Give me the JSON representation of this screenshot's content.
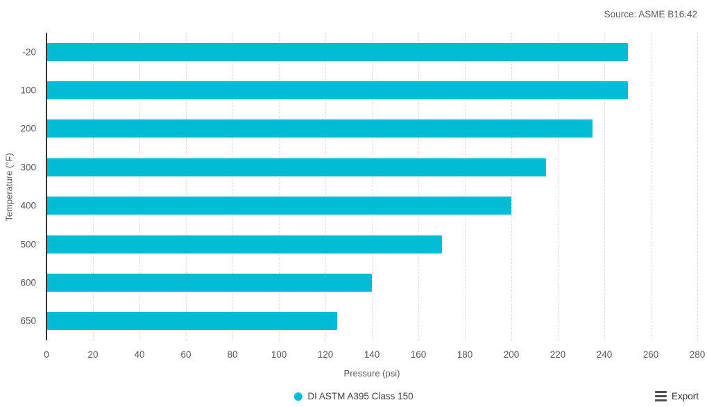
{
  "header": {
    "source": "Source: ASME B16.42"
  },
  "chart_data": {
    "type": "bar",
    "orientation": "horizontal",
    "categories": [
      "-20",
      "100",
      "200",
      "300",
      "400",
      "500",
      "600",
      "650"
    ],
    "series": [
      {
        "name": "DI ASTM A395 Class 150",
        "color": "#00bcd4",
        "values": [
          250,
          250,
          235,
          215,
          200,
          170,
          140,
          125
        ]
      }
    ],
    "title": "",
    "xlabel": "Pressure (psi)",
    "ylabel": "Temperature (°F)",
    "xlim": [
      0,
      280
    ],
    "xticks": [
      0,
      20,
      40,
      60,
      80,
      100,
      120,
      140,
      160,
      180,
      200,
      220,
      240,
      260,
      280
    ],
    "grid": "vertical-dashed",
    "legend_position": "bottom-center"
  },
  "legend": {
    "items": [
      {
        "label": "DI ASTM A395 Class 150",
        "color": "#00bcd4"
      }
    ]
  },
  "toolbar": {
    "export_label": "Export"
  },
  "colors": {
    "bar": "#00bcd4",
    "grid": "#e0e0e0",
    "axis": "#333333",
    "tick_text": "#555555",
    "source_text": "#595959"
  }
}
